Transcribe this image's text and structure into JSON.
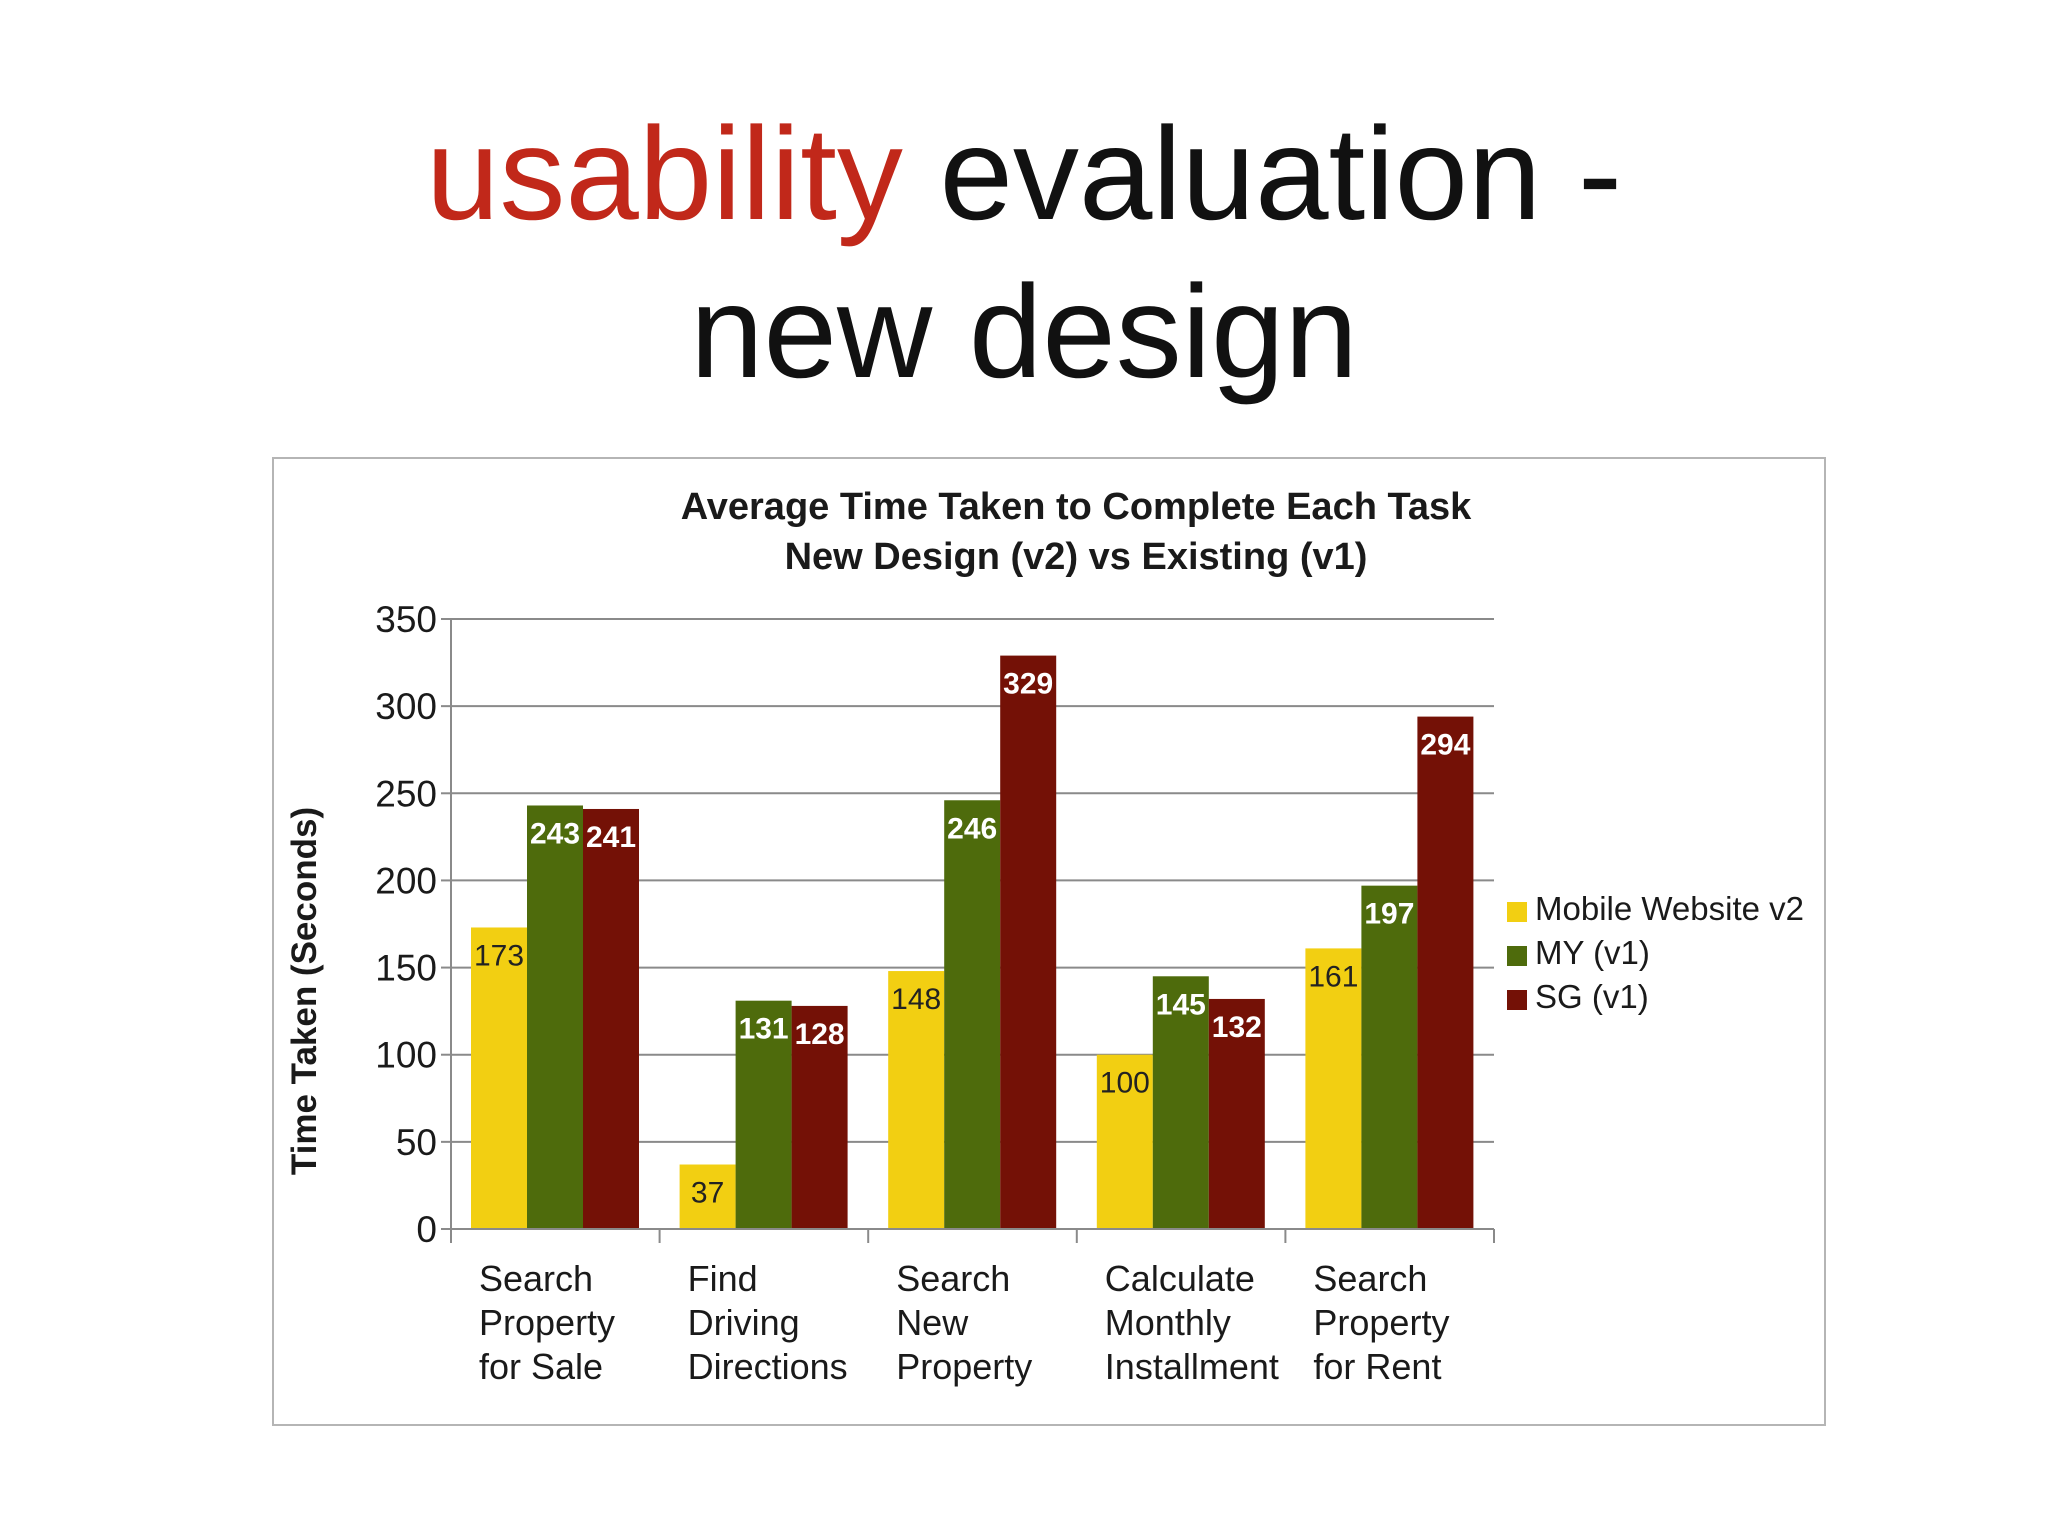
{
  "slide": {
    "title_accent": "usability",
    "title_rest": " evaluation -",
    "title_line2": "new design"
  },
  "colors": {
    "accent": "#c1281a",
    "text": "#111111"
  },
  "chart_data": {
    "type": "bar",
    "title": "Average Time Taken to Complete Each Task",
    "subtitle": "New Design (v2) vs Existing (v1)",
    "xlabel": "",
    "ylabel": "Time Taken (Seconds)",
    "ylim": [
      0,
      350
    ],
    "yticks": [
      0,
      50,
      100,
      150,
      200,
      250,
      300,
      350
    ],
    "grid": true,
    "legend_position": "right",
    "categories": [
      [
        "Search",
        "Property",
        "for Sale"
      ],
      [
        "Find",
        "Driving",
        "Directions"
      ],
      [
        "Search",
        "New",
        "Property"
      ],
      [
        "Calculate",
        "Monthly",
        "Installment"
      ],
      [
        "Search",
        "Property",
        "for Rent"
      ]
    ],
    "series": [
      {
        "name": "Mobile Website v2",
        "color": "#f2cf12",
        "label_color": "#222222",
        "values": [
          173,
          37,
          148,
          100,
          161
        ]
      },
      {
        "name": "MY (v1)",
        "color": "#4e6b0c",
        "label_color": "#ffffff",
        "values": [
          243,
          131,
          246,
          145,
          197
        ]
      },
      {
        "name": "SG (v1)",
        "color": "#741106",
        "label_color": "#ffffff",
        "values": [
          241,
          128,
          329,
          132,
          294
        ]
      }
    ]
  }
}
